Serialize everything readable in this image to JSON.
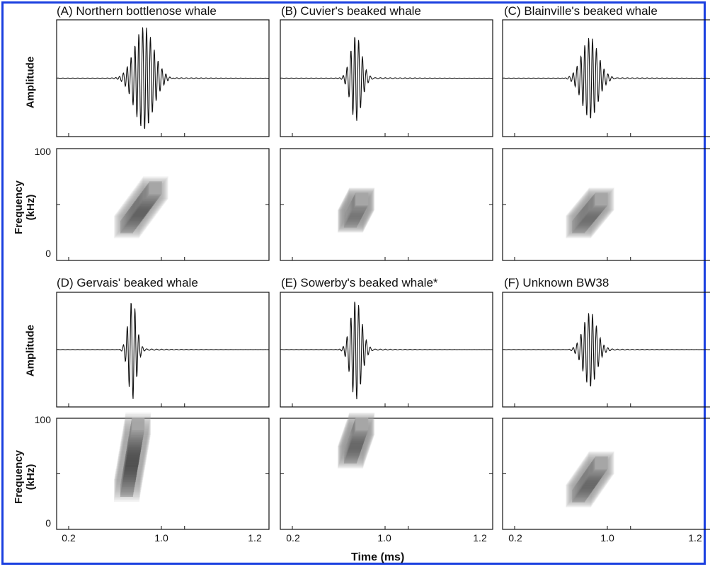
{
  "figure": {
    "panels": [
      {
        "id": "A",
        "title": "(A) Northern bottlenose whale"
      },
      {
        "id": "B",
        "title": "(B) Cuvier's beaked whale"
      },
      {
        "id": "C",
        "title": "(C) Blainville's beaked whale"
      },
      {
        "id": "D",
        "title": "(D) Gervais' beaked whale"
      },
      {
        "id": "E",
        "title": "(E) Sowerby's beaked whale*"
      },
      {
        "id": "F",
        "title": "(F) Unknown BW38"
      }
    ],
    "ylabel_amplitude": "Amplitude",
    "ylabel_frequency_line1": "Frequency",
    "ylabel_frequency_line2": "(kHz)",
    "ytick_top": "100",
    "ytick_bottom": "0",
    "xticks": [
      "0.2",
      "1.0",
      "1.2"
    ],
    "xlabel": "Time (ms)",
    "colors": {
      "border": "#1a3fe0",
      "ink": "#111111"
    }
  },
  "chart_data": [
    {
      "type": "line",
      "title": "(A) Northern bottlenose whale",
      "ylabel": "Amplitude",
      "xlabel": "Time (ms)",
      "xticks": [
        0.2,
        1.0,
        1.2
      ],
      "signal": {
        "center_ms": 0.85,
        "peak": 0.95,
        "duration_ms": 0.35
      }
    },
    {
      "type": "heatmap",
      "title": "(A) Northern bottlenose whale",
      "ylabel": "Frequency (kHz)",
      "ylim": [
        0,
        100
      ],
      "sweep": {
        "start_ms": 0.7,
        "end_ms": 0.95,
        "start_khz": 30,
        "end_khz": 65
      }
    },
    {
      "type": "line",
      "title": "(B) Cuvier's beaked whale",
      "ylabel": "Amplitude",
      "xlabel": "Time (ms)",
      "xticks": [
        0.2,
        1.0,
        1.2
      ],
      "signal": {
        "center_ms": 0.75,
        "peak": 0.8,
        "duration_ms": 0.2
      }
    },
    {
      "type": "heatmap",
      "title": "(B) Cuvier's beaked whale",
      "ylabel": "Frequency (kHz)",
      "ylim": [
        0,
        100
      ],
      "sweep": {
        "start_ms": 0.7,
        "end_ms": 0.8,
        "start_khz": 35,
        "end_khz": 55
      }
    },
    {
      "type": "line",
      "title": "(C) Blainville's beaked whale",
      "ylabel": "Amplitude",
      "xlabel": "Time (ms)",
      "xticks": [
        0.2,
        1.0,
        1.2
      ],
      "signal": {
        "center_ms": 0.85,
        "peak": 0.75,
        "duration_ms": 0.3
      }
    },
    {
      "type": "heatmap",
      "title": "(C) Blainville's beaked whale",
      "ylabel": "Frequency (kHz)",
      "ylim": [
        0,
        100
      ],
      "sweep": {
        "start_ms": 0.75,
        "end_ms": 0.95,
        "start_khz": 30,
        "end_khz": 55
      }
    },
    {
      "type": "line",
      "title": "(D) Gervais' beaked whale",
      "ylabel": "Amplitude",
      "xlabel": "Time (ms)",
      "xticks": [
        0.2,
        1.0,
        1.2
      ],
      "signal": {
        "center_ms": 0.75,
        "peak": 0.95,
        "duration_ms": 0.15
      }
    },
    {
      "type": "heatmap",
      "title": "(D) Gervais' beaked whale",
      "ylabel": "Frequency (kHz)",
      "ylim": [
        0,
        100
      ],
      "sweep": {
        "start_ms": 0.7,
        "end_ms": 0.8,
        "start_khz": 35,
        "end_khz": 95
      }
    },
    {
      "type": "line",
      "title": "(E) Sowerby's beaked whale*",
      "ylabel": "Amplitude",
      "xlabel": "Time (ms)",
      "xticks": [
        0.2,
        1.0,
        1.2
      ],
      "signal": {
        "center_ms": 0.75,
        "peak": 0.95,
        "duration_ms": 0.2
      }
    },
    {
      "type": "heatmap",
      "title": "(E) Sowerby's beaked whale*",
      "ylabel": "Frequency (kHz)",
      "ylim": [
        0,
        100
      ],
      "sweep": {
        "start_ms": 0.7,
        "end_ms": 0.8,
        "start_khz": 65,
        "end_khz": 95
      }
    },
    {
      "type": "line",
      "title": "(F) Unknown BW38",
      "ylabel": "Amplitude",
      "xlabel": "Time (ms)",
      "xticks": [
        0.2,
        1.0,
        1.2
      ],
      "signal": {
        "center_ms": 0.85,
        "peak": 0.7,
        "duration_ms": 0.25
      }
    },
    {
      "type": "heatmap",
      "title": "(F) Unknown BW38",
      "ylabel": "Frequency (kHz)",
      "ylim": [
        0,
        100
      ],
      "sweep": {
        "start_ms": 0.75,
        "end_ms": 0.95,
        "start_khz": 30,
        "end_khz": 60
      }
    }
  ]
}
